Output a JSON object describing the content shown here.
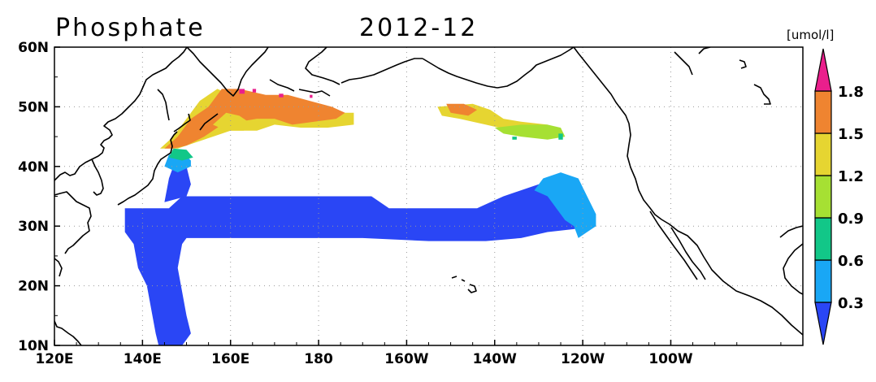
{
  "title": "Phosphate",
  "period": "2012-12",
  "units": "[umol/l]",
  "map": {
    "lon_range": [
      120,
      290
    ],
    "lat_range": [
      10,
      60
    ],
    "x_ticks": [
      {
        "lon": 120,
        "label": "120E"
      },
      {
        "lon": 140,
        "label": "140E"
      },
      {
        "lon": 160,
        "label": "160E"
      },
      {
        "lon": 180,
        "label": "180"
      },
      {
        "lon": 200,
        "label": "160W"
      },
      {
        "lon": 220,
        "label": "140W"
      },
      {
        "lon": 240,
        "label": "120W"
      },
      {
        "lon": 260,
        "label": "100W"
      }
    ],
    "y_ticks": [
      {
        "lat": 10,
        "label": "10N"
      },
      {
        "lat": 20,
        "label": "20N"
      },
      {
        "lat": 30,
        "label": "30N"
      },
      {
        "lat": 40,
        "label": "40N"
      },
      {
        "lat": 50,
        "label": "50N"
      },
      {
        "lat": 60,
        "label": "60N"
      }
    ],
    "grid": true
  },
  "colorbar": {
    "labels": [
      "0.3",
      "0.6",
      "0.9",
      "1.2",
      "1.5",
      "1.8"
    ],
    "colors": [
      "#2a46f5",
      "#19a7f5",
      "#12c788",
      "#a6e033",
      "#e6d531",
      "#ef8430",
      "#ea1f8c"
    ]
  },
  "chart_data": {
    "type": "heatmap",
    "title": "Phosphate",
    "subtitle": "2012-12",
    "units": "[umol/l]",
    "xlim": [
      120,
      290
    ],
    "ylim": [
      10,
      60
    ],
    "value_bins": [
      {
        "range": "<0.3",
        "color": "#2a46f5"
      },
      {
        "range": "0.3-0.6",
        "color": "#19a7f5"
      },
      {
        "range": "0.6-0.9",
        "color": "#12c788"
      },
      {
        "range": "0.9-1.2",
        "color": "#a6e033"
      },
      {
        "range": "1.2-1.5",
        "color": "#e6d531"
      },
      {
        "range": "1.5-1.8",
        "color": "#ef8430"
      },
      {
        "range": ">1.8",
        "color": "#ea1f8c"
      }
    ],
    "regions": [
      {
        "area": "subtropical band 27-35N, 135E-122W",
        "bin": "<0.3"
      },
      {
        "area": "western branch 9-33N, 136-148E",
        "bin": "<0.3"
      },
      {
        "area": "east coast 29-39N, 129-118W",
        "bin": "0.3-0.6"
      },
      {
        "area": "off Japan 40-42N, 145-151E",
        "bin": "0.3-0.6"
      },
      {
        "area": "northwest 42-53N, 145E-172W",
        "bin": "1.2-1.8"
      },
      {
        "area": "northeast 46-51N, 148-125W",
        "bin": "0.9-1.5"
      },
      {
        "area": "spots 52N, 160-170E",
        "bin": ">1.8"
      }
    ]
  }
}
